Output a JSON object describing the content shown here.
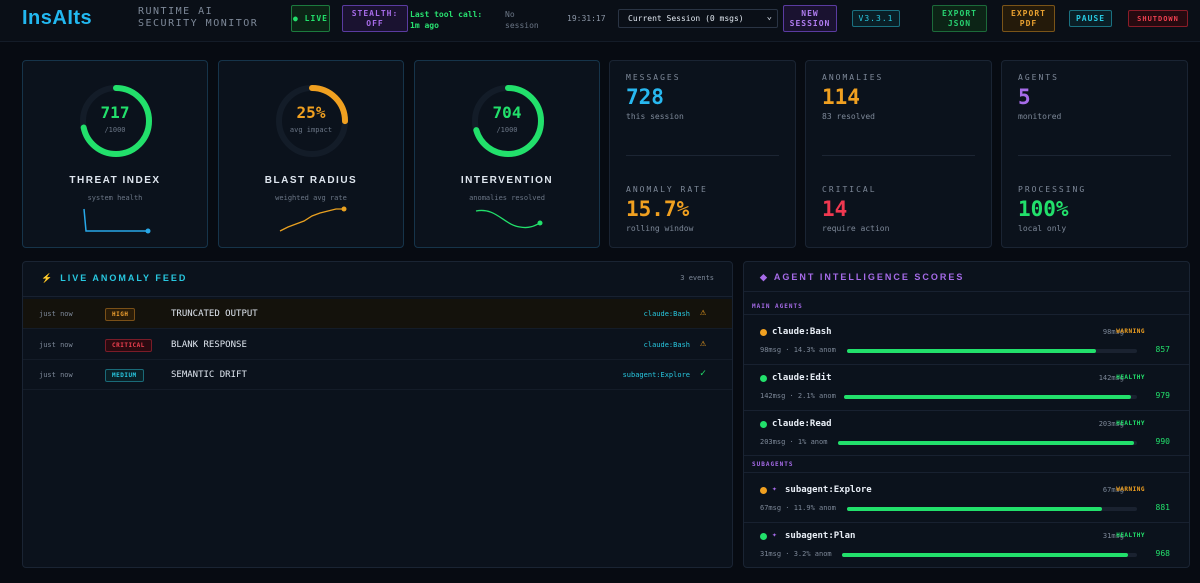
{
  "header": {
    "logo": "InsAIts",
    "subtitle": "RUNTIME AI SECURITY MONITOR",
    "live": "● LIVE",
    "stealth": "STEALTH: OFF",
    "last_call": "Last tool call: 1m ago",
    "session_status": "No session",
    "clock": "19:31:17",
    "session_select": "Current Session (0 msgs)",
    "new_session": "NEW SESSION",
    "version": "V3.3.1",
    "export_json": "EXPORT JSON",
    "export_pdf": "EXPORT PDF",
    "pause": "PAUSE",
    "shutdown": "SHUTDOWN"
  },
  "gauges": [
    {
      "value": "717",
      "sub": "/1000",
      "title": "THREAT INDEX",
      "desc": "system health",
      "fraction": 0.717,
      "color": "#22e06b",
      "spark_color": "#28a8e8"
    },
    {
      "value": "25%",
      "sub": "avg impact",
      "title": "BLAST RADIUS",
      "desc": "weighted avg rate",
      "fraction": 0.25,
      "color": "#f0a020",
      "spark_color": "#e8a020"
    },
    {
      "value": "704",
      "sub": "/1000",
      "title": "INTERVENTION",
      "desc": "anomalies resolved",
      "fraction": 0.704,
      "color": "#22e06b",
      "spark_color": "#22e06b"
    }
  ],
  "stats": [
    {
      "label": "MESSAGES",
      "value": "728",
      "desc": "this session",
      "color": "#28b8f0"
    },
    {
      "label": "ANOMALIES",
      "value": "114",
      "desc": "83 resolved",
      "color": "#f0a020"
    },
    {
      "label": "AGENTS",
      "value": "5",
      "desc": "monitored",
      "color": "#a66be8"
    },
    {
      "label": "ANOMALY RATE",
      "value": "15.7%",
      "desc": "rolling window",
      "color": "#f0a020"
    },
    {
      "label": "CRITICAL",
      "value": "14",
      "desc": "require action",
      "color": "#f03850"
    },
    {
      "label": "PROCESSING",
      "value": "100%",
      "desc": "local only",
      "color": "#22e06b"
    }
  ],
  "feed": {
    "title": "LIVE ANOMALY FEED",
    "bolt": "⚡",
    "count": "3 events",
    "rows": [
      {
        "time": "just now",
        "severity": "HIGH",
        "desc": "TRUNCATED OUTPUT",
        "agent": "claude:Bash",
        "icon": "⚠",
        "icon_color": "#f0a020"
      },
      {
        "time": "just now",
        "severity": "CRITICAL",
        "desc": "BLANK RESPONSE",
        "agent": "claude:Bash",
        "icon": "⚠",
        "icon_color": "#f0a020"
      },
      {
        "time": "just now",
        "severity": "MEDIUM",
        "desc": "SEMANTIC DRIFT",
        "agent": "subagent:Explore",
        "icon": "✓",
        "icon_color": "#22e06b"
      }
    ]
  },
  "agents": {
    "title": "AGENT INTELLIGENCE SCORES",
    "diamond": "◆",
    "main_label": "MAIN AGENTS",
    "sub_label": "SUBAGENTS",
    "main": [
      {
        "name": "claude:Bash",
        "msgs": "98msg",
        "status": "WARNING",
        "meta": "98msg · 14.3% anom",
        "score": "857",
        "fraction": 0.857,
        "dot": "#f0a020",
        "status_color": "#f0a020"
      },
      {
        "name": "claude:Edit",
        "msgs": "142msg",
        "status": "HEALTHY",
        "meta": "142msg · 2.1% anom",
        "score": "979",
        "fraction": 0.979,
        "dot": "#22e06b",
        "status_color": "#22e06b"
      },
      {
        "name": "claude:Read",
        "msgs": "203msg",
        "status": "HEALTHY",
        "meta": "203msg · 1% anom",
        "score": "990",
        "fraction": 0.99,
        "dot": "#22e06b",
        "status_color": "#22e06b"
      }
    ],
    "sub": [
      {
        "name": "subagent:Explore",
        "msgs": "67msg",
        "status": "WARNING",
        "meta": "67msg · 11.9% anom",
        "score": "881",
        "fraction": 0.881,
        "dot": "#f0a020",
        "status_color": "#f0a020",
        "spark": "✦"
      },
      {
        "name": "subagent:Plan",
        "msgs": "31msg",
        "status": "HEALTHY",
        "meta": "31msg · 3.2% anom",
        "score": "968",
        "fraction": 0.968,
        "dot": "#22e06b",
        "status_color": "#22e06b",
        "spark": "✦"
      }
    ]
  }
}
